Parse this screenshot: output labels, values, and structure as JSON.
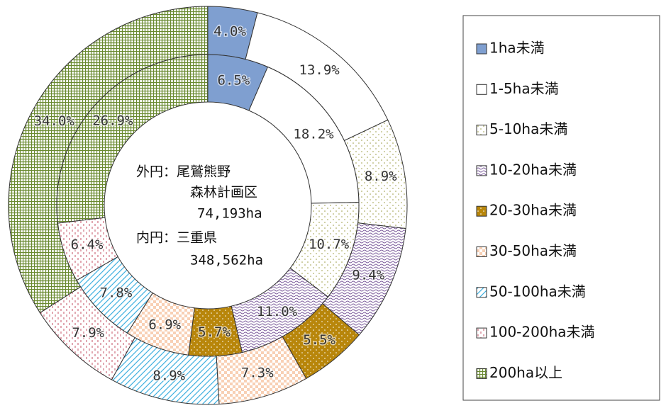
{
  "chart_data": {
    "type": "double-donut",
    "categories": [
      "1ha未満",
      "1-5ha未満",
      "5-10ha未満",
      "10-20ha未満",
      "20-30ha未満",
      "30-50ha未満",
      "50-100ha未満",
      "100-200ha未満",
      "200ha以上"
    ],
    "colors": [
      "#7f9fd0",
      "#ffffff",
      "#9a9a40",
      "#7a5a9a",
      "#b8860b",
      "#f4b183",
      "#40b0e0",
      "#d07080",
      "#6a8a30"
    ],
    "series": [
      {
        "values": [
          4.0,
          13.9,
          8.9,
          9.4,
          5.5,
          7.3,
          8.9,
          7.9,
          34.0
        ],
        "value_labels": [
          "4.0%",
          "13.9%",
          "8.9%",
          "9.4%",
          "5.5%",
          "7.3%",
          "8.9%",
          "7.9%",
          "34.0%"
        ]
      },
      {
        "values": [
          6.5,
          18.2,
          10.7,
          11.0,
          5.7,
          6.9,
          7.8,
          6.4,
          26.9
        ],
        "value_labels": [
          "6.5%",
          "18.2%",
          "10.7%",
          "11.0%",
          "5.7%",
          "6.9%",
          "7.8%",
          "6.4%",
          "26.9%"
        ]
      }
    ],
    "annotations": [
      "外円：尾鷲熊野",
      "森林計画区",
      "74,193ha",
      "内円：三重県",
      "348,562ha"
    ]
  }
}
